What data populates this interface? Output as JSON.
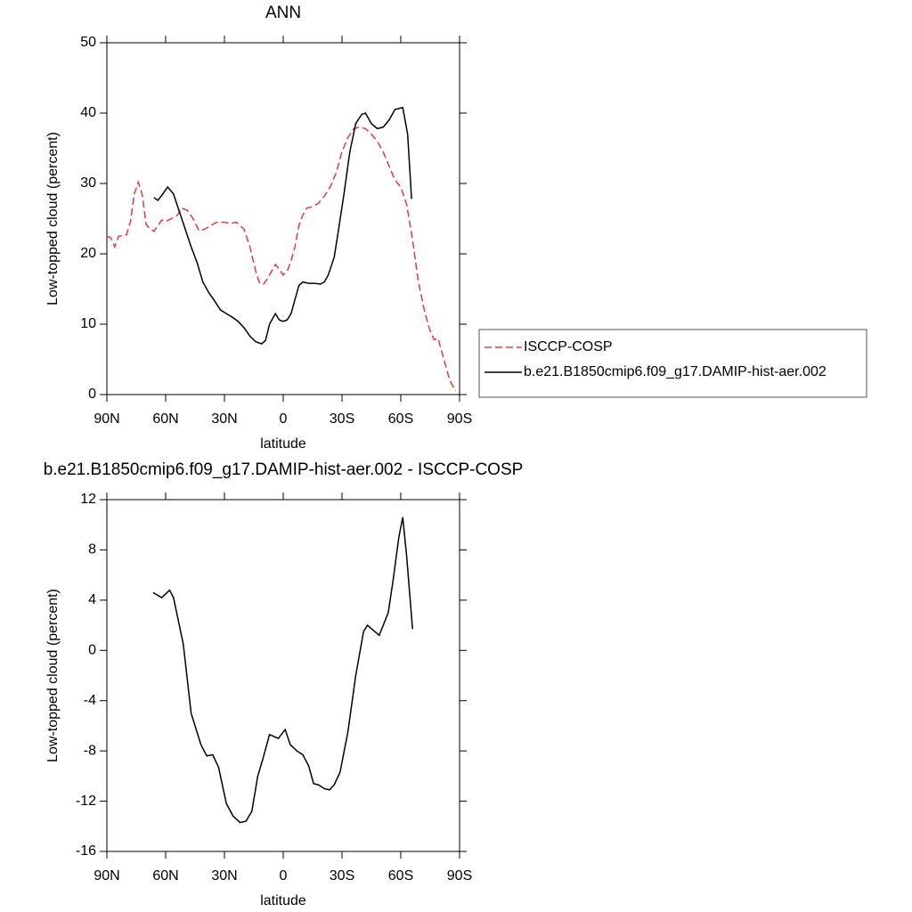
{
  "chart_data": [
    {
      "type": "line",
      "title": "ANN",
      "xlabel": "latitude",
      "ylabel": "Low-topped cloud (percent)",
      "xlim": [
        90,
        -90
      ],
      "xticks": [
        {
          "value": 90,
          "label": "90N"
        },
        {
          "value": 60,
          "label": "60N"
        },
        {
          "value": 30,
          "label": "30N"
        },
        0,
        {
          "value": -30,
          "label": "30S"
        },
        {
          "value": -60,
          "label": "60S"
        },
        {
          "value": -90,
          "label": "90S"
        }
      ],
      "ylim": [
        0,
        50
      ],
      "yticks": [
        0,
        10,
        20,
        30,
        40,
        50
      ],
      "legend": "right",
      "series": [
        {
          "name": "ISCCP-COSP",
          "color": "#e8383d",
          "dash": "dashed",
          "x": [
            90,
            88,
            86,
            84,
            80,
            78,
            76,
            74,
            72,
            70,
            68,
            66,
            64,
            62,
            60,
            57,
            54,
            52,
            49,
            46,
            43,
            40,
            37,
            34,
            30,
            27,
            24,
            20,
            17,
            14,
            12,
            10,
            8,
            6,
            4,
            2,
            0,
            -2,
            -4,
            -6,
            -8,
            -10,
            -12,
            -15,
            -18,
            -21,
            -24,
            -27,
            -30,
            -33,
            -36,
            -39,
            -42,
            -45,
            -48,
            -51,
            -54,
            -57,
            -60,
            -63,
            -66,
            -69,
            -72,
            -75,
            -77,
            -79,
            -82,
            -85,
            -88
          ],
          "values": [
            22.5,
            22.3,
            21,
            22.5,
            22.7,
            24.5,
            28.5,
            30.2,
            28.5,
            24.2,
            23.5,
            23.2,
            24,
            24.8,
            24.6,
            25,
            25.5,
            26.5,
            26.2,
            25,
            23.3,
            23.5,
            24,
            24.5,
            24.5,
            24.3,
            24.5,
            23.5,
            21,
            17.5,
            15.8,
            15.7,
            16.5,
            17.5,
            18.5,
            17.8,
            17,
            17.5,
            19,
            21,
            24,
            25.5,
            26.5,
            26.7,
            27.2,
            28.2,
            29.5,
            31.5,
            34.5,
            36.5,
            37.8,
            38,
            37.8,
            37,
            36,
            34.5,
            32.5,
            30.5,
            29.5,
            27,
            22,
            16,
            12,
            9,
            7.8,
            8,
            5,
            2,
            0.5
          ]
        },
        {
          "name": "b.e21.B1850cmip6.f09_g17.DAMIP-hist-aer.002",
          "color": "#000000",
          "dash": "solid",
          "x": [
            66,
            64,
            62,
            59,
            56,
            53,
            50,
            47,
            44,
            41,
            38,
            35,
            32,
            29,
            26,
            23,
            20,
            17,
            14,
            11,
            9,
            7,
            4,
            2,
            0,
            -2,
            -4,
            -6,
            -8,
            -10,
            -13,
            -16,
            -19,
            -21,
            -23,
            -26,
            -28,
            -31,
            -34,
            -37,
            -40,
            -42,
            -45,
            -48,
            -51,
            -54,
            -57,
            -61,
            -63.5,
            -65.5
          ],
          "values": [
            28,
            27.6,
            28.3,
            29.5,
            28.5,
            26,
            23.5,
            21,
            18.8,
            16,
            14.5,
            13.3,
            12,
            11.5,
            11,
            10.4,
            9.5,
            8.3,
            7.5,
            7.2,
            7.7,
            10,
            11.5,
            10.6,
            10.4,
            10.6,
            11.5,
            13.5,
            15.5,
            16,
            15.8,
            15.8,
            15.7,
            16,
            17,
            19.5,
            23,
            28.5,
            34.5,
            38.5,
            39.8,
            40,
            38.5,
            37.8,
            38,
            39,
            40.5,
            40.8,
            37,
            27.8
          ]
        }
      ]
    },
    {
      "type": "line",
      "title": "b.e21.B1850cmip6.f09_g17.DAMIP-hist-aer.002 - ISCCP-COSP",
      "xlabel": "latitude",
      "ylabel": "Low-topped cloud (percent)",
      "xlim": [
        90,
        -90
      ],
      "xticks": [
        {
          "value": 90,
          "label": "90N"
        },
        {
          "value": 60,
          "label": "60N"
        },
        {
          "value": 30,
          "label": "30N"
        },
        0,
        {
          "value": -30,
          "label": "30S"
        },
        {
          "value": -60,
          "label": "60S"
        },
        {
          "value": -90,
          "label": "90S"
        }
      ],
      "ylim": [
        -16,
        12
      ],
      "yticks": [
        -16,
        -12,
        -8,
        -4,
        0,
        4,
        8,
        12
      ],
      "series": [
        {
          "color": "#000000",
          "dash": "solid",
          "x": [
            66.4,
            62,
            58,
            56,
            51,
            47,
            42,
            39,
            36,
            33,
            29,
            25.5,
            22,
            19,
            16,
            13,
            10.5,
            7,
            2.5,
            -1,
            -3.6,
            -7,
            -10,
            -13,
            -15.5,
            -18,
            -21,
            -23.6,
            -26,
            -29,
            -33,
            -37,
            -41,
            -43,
            -46,
            -49,
            -53.6,
            -56,
            -59,
            -61,
            -63,
            -66
          ],
          "values": [
            4.6,
            4.2,
            4.8,
            4.2,
            0.5,
            -5,
            -7.5,
            -8.4,
            -8.3,
            -9.3,
            -12.2,
            -13.2,
            -13.7,
            -13.6,
            -12.8,
            -10,
            -8.7,
            -6.7,
            -7,
            -6.3,
            -7.5,
            -8,
            -8.3,
            -9.2,
            -10.6,
            -10.7,
            -11,
            -11.1,
            -10.7,
            -9.7,
            -6.5,
            -2,
            1.5,
            2,
            1.6,
            1.2,
            3,
            5.5,
            9,
            10.6,
            7.5,
            1.7
          ]
        }
      ]
    }
  ]
}
